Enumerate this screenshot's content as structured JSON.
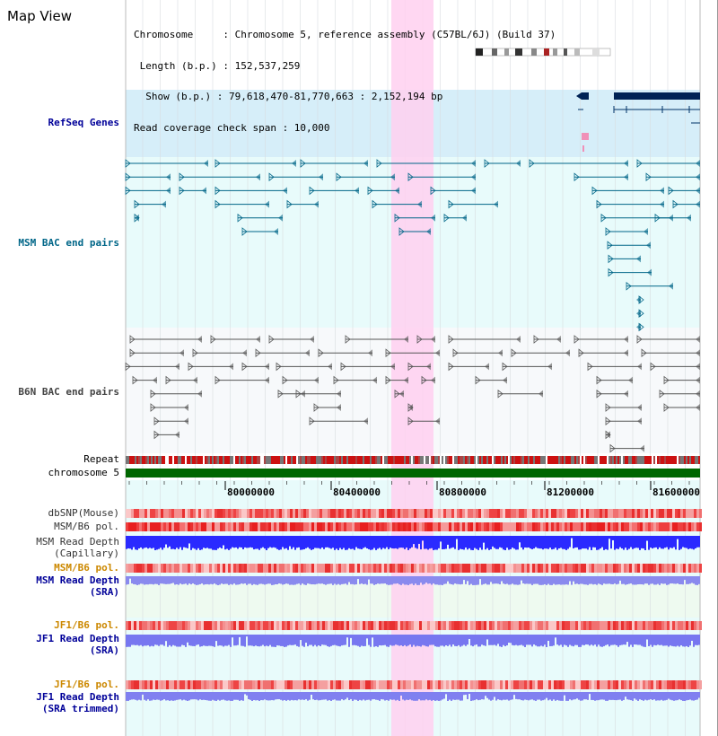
{
  "title": "Map View",
  "info": {
    "chromosome": "Chromosome     : Chromosome 5, reference assembly (C57BL/6J) (Build 37)",
    "length": " Length (b.p.) : 152,537,259",
    "show": "  Show (b.p.) : 79,618,470-81,770,663 : 2,152,194 bp",
    "span": "Read coverage check span : 10,000"
  },
  "tracks": {
    "refseq": "RefSeq Genes",
    "msm_bac": "MSM BAC end pairs",
    "b6n_bac": "B6N BAC end pairs",
    "repeat": "Repeat",
    "chrom": "chromosome 5",
    "dbsnp": "dbSNP(Mouse)",
    "msm_pol1": "MSM/B6 pol.",
    "msm_depth1": "MSM Read Depth",
    "msm_depth1_sub": "(Capillary)",
    "msm_pol2": "MSM/B6 pol.",
    "msm_depth2": "MSM Read Depth",
    "msm_depth2_sub": "(SRA)",
    "jf1_pol1": "JF1/B6 pol.",
    "jf1_depth1": "JF1 Read Depth",
    "jf1_depth1_sub": "(SRA)",
    "jf1_pol2": "JF1/B6 pol.",
    "jf1_depth2": "JF1 Read Depth",
    "jf1_depth2_sub": "(SRA trimmed)"
  },
  "axis_ticks": [
    "80000000",
    "80400000",
    "80800000",
    "81200000",
    "81600000"
  ],
  "colors": {
    "refseq_label": "#000099",
    "msm_bac_label": "#006688",
    "b6n_label": "#444444",
    "orange_label": "#cc8800",
    "highlight": "#ffd0f0",
    "chrom_bar": "#006600",
    "refseq_bg": "#d6eef9",
    "panel_bg": "#e8fbfb"
  }
}
